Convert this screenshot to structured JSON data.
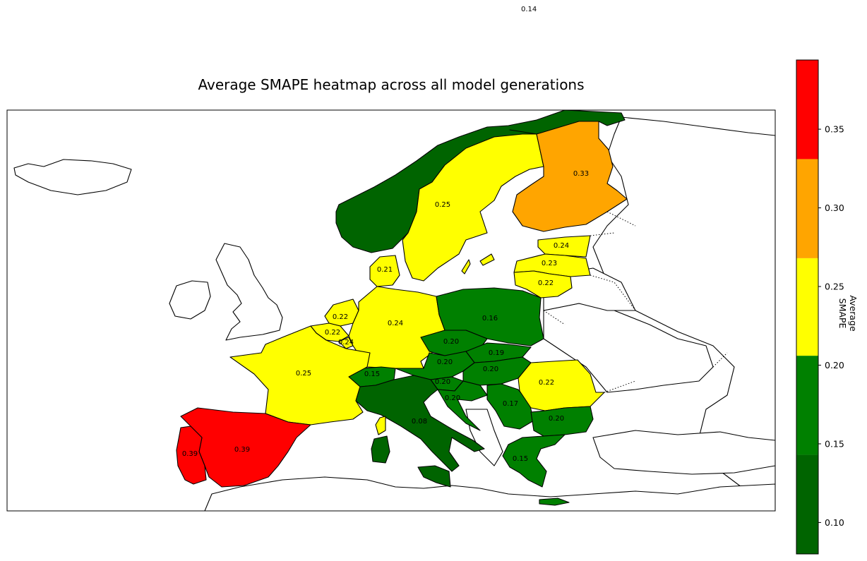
{
  "figure": {
    "title": "Average SMAPE heatmap across all model generations",
    "stray_label": "0.14"
  },
  "colorbar": {
    "label": "Average SMAPE",
    "vmin": 0.08,
    "vmax": 0.394,
    "bands": [
      {
        "from": 0.08,
        "to": 0.143,
        "color": "#006400"
      },
      {
        "from": 0.143,
        "to": 0.206,
        "color": "#008000"
      },
      {
        "from": 0.206,
        "to": 0.268,
        "color": "#FFFF00"
      },
      {
        "from": 0.268,
        "to": 0.331,
        "color": "#FFA500"
      },
      {
        "from": 0.331,
        "to": 0.394,
        "color": "#FF0000"
      }
    ],
    "ticks": [
      {
        "value": 0.1,
        "label": "0.10"
      },
      {
        "value": 0.15,
        "label": "0.15"
      },
      {
        "value": 0.2,
        "label": "0.20"
      },
      {
        "value": 0.25,
        "label": "0.25"
      },
      {
        "value": 0.3,
        "label": "0.30"
      },
      {
        "value": 0.35,
        "label": "0.35"
      }
    ]
  },
  "chart_data": {
    "type": "heatmap",
    "title": "Average SMAPE heatmap across all model generations",
    "colorbar_label": "Average SMAPE",
    "colorbar_range": [
      0.08,
      0.394
    ],
    "regions": [
      {
        "id": "norway",
        "value": 0.14,
        "label": "0.14"
      },
      {
        "id": "sweden",
        "value": 0.25,
        "label": "0.25"
      },
      {
        "id": "finland",
        "value": 0.33,
        "label": "0.33"
      },
      {
        "id": "estonia",
        "value": 0.24,
        "label": "0.24"
      },
      {
        "id": "latvia",
        "value": 0.23,
        "label": "0.23"
      },
      {
        "id": "lithuania",
        "value": 0.22,
        "label": "0.22"
      },
      {
        "id": "denmark",
        "value": 0.21,
        "label": "0.21"
      },
      {
        "id": "netherlands",
        "value": 0.22,
        "label": "0.22"
      },
      {
        "id": "belgium",
        "value": 0.22,
        "label": "0.22"
      },
      {
        "id": "luxembourg",
        "value": 0.24,
        "label": "0.24"
      },
      {
        "id": "germany",
        "value": 0.24,
        "label": "0.24"
      },
      {
        "id": "poland",
        "value": 0.16,
        "label": "0.16"
      },
      {
        "id": "czechia",
        "value": 0.2,
        "label": "0.20"
      },
      {
        "id": "slovakia",
        "value": 0.19,
        "label": "0.19"
      },
      {
        "id": "austria",
        "value": 0.2,
        "label": "0.20"
      },
      {
        "id": "hungary",
        "value": 0.2,
        "label": "0.20"
      },
      {
        "id": "switzerland",
        "value": 0.15,
        "label": "0.15"
      },
      {
        "id": "france",
        "value": 0.25,
        "label": "0.25"
      },
      {
        "id": "slovenia",
        "value": 0.2,
        "label": "0.20"
      },
      {
        "id": "croatia",
        "value": 0.2,
        "label": "0.20"
      },
      {
        "id": "serbia",
        "value": 0.17,
        "label": "0.17"
      },
      {
        "id": "romania",
        "value": 0.22,
        "label": "0.22"
      },
      {
        "id": "bulgaria",
        "value": 0.2,
        "label": "0.20"
      },
      {
        "id": "italy",
        "value": 0.08,
        "label": "0.08"
      },
      {
        "id": "greece",
        "value": 0.15,
        "label": "0.15"
      },
      {
        "id": "spain",
        "value": 0.39,
        "label": "0.39"
      },
      {
        "id": "portugal",
        "value": 0.39,
        "label": "0.39"
      }
    ]
  }
}
